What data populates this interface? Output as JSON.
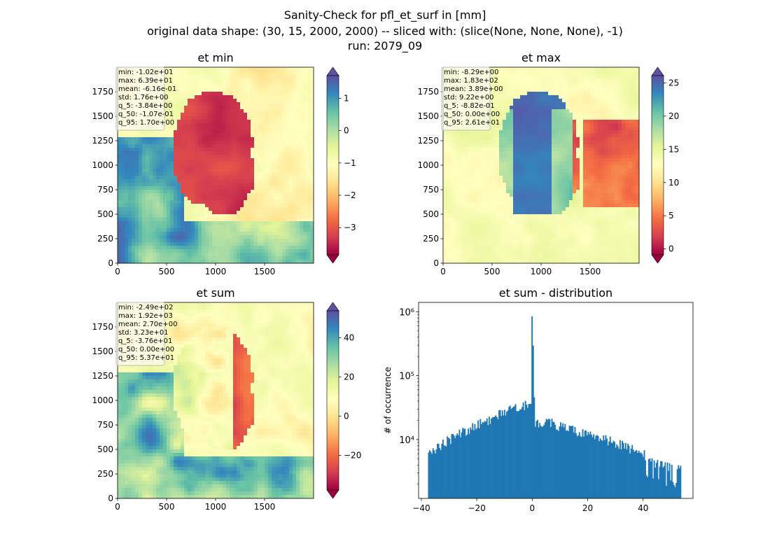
{
  "suptitle": {
    "line1": "Sanity-Check for pfl_et_surf in [mm]",
    "line2": "original data shape: (30, 15, 2000, 2000) -- sliced with: (slice(None, None, None), -1)",
    "line3": "run: 2079_09"
  },
  "colormap": "Spectral",
  "colormap_colors": [
    "#9e0142",
    "#d53e4f",
    "#f46d43",
    "#fdae61",
    "#fee08b",
    "#ffffbf",
    "#e6f598",
    "#abdda4",
    "#66c2a5",
    "#3288bd",
    "#5e4fa2"
  ],
  "bar_color": "#1f77b4",
  "chart_data": [
    {
      "type": "heatmap",
      "title": "et min",
      "xlim": [
        0,
        2000
      ],
      "ylim": [
        0,
        2000
      ],
      "xticks": [
        0,
        500,
        1000,
        1500
      ],
      "yticks": [
        0,
        250,
        500,
        750,
        1000,
        1250,
        1500,
        1750
      ],
      "colorbar": {
        "min": -3.84,
        "max": 1.7,
        "ticks": [
          -3,
          -2,
          -1,
          0,
          1
        ],
        "tick_labels": [
          "−3",
          "−2",
          "−1",
          "0",
          "1"
        ],
        "extend": "both"
      },
      "stats": [
        "min: -1.02e+01",
        "max: 6.39e+01",
        "mean: -6.16e-01",
        "std: 1.76e+00",
        "q_5: -3.84e+00",
        "q_50: -1.07e-01",
        "q_95: 1.70e+00"
      ]
    },
    {
      "type": "heatmap",
      "title": "et max",
      "xlim": [
        0,
        2000
      ],
      "ylim": [
        0,
        2000
      ],
      "xticks": [
        0,
        500,
        1000,
        1500
      ],
      "yticks": [
        0,
        250,
        500,
        750,
        1000,
        1250,
        1500,
        1750
      ],
      "colorbar": {
        "min": -0.882,
        "max": 26.1,
        "ticks": [
          0,
          5,
          10,
          15,
          20,
          25
        ],
        "tick_labels": [
          "0",
          "5",
          "10",
          "15",
          "20",
          "25"
        ],
        "extend": "both"
      },
      "stats": [
        "min: -8.29e+00",
        "max: 1.83e+02",
        "mean: 3.89e+00",
        "std: 9.22e+00",
        "q_5: -8.82e-01",
        "q_50: 0.00e+00",
        "q_95: 2.61e+01"
      ]
    },
    {
      "type": "heatmap",
      "title": "et sum",
      "xlim": [
        0,
        2000
      ],
      "ylim": [
        0,
        2000
      ],
      "xticks": [
        0,
        500,
        1000,
        1500
      ],
      "yticks": [
        0,
        250,
        500,
        750,
        1000,
        1250,
        1500,
        1750
      ],
      "colorbar": {
        "min": -37.6,
        "max": 53.7,
        "ticks": [
          -20,
          0,
          20,
          40
        ],
        "tick_labels": [
          "−20",
          "0",
          "20",
          "40"
        ],
        "extend": "both"
      },
      "stats": [
        "min: -2.49e+02",
        "max: 1.92e+03",
        "mean: 2.70e+00",
        "std: 3.23e+01",
        "q_5: -3.76e+01",
        "q_50: 0.00e+00",
        "q_95: 5.37e+01"
      ]
    },
    {
      "type": "bar",
      "title": "et sum - distribution",
      "ylabel": "# of occurrence",
      "yscale": "log",
      "xlim": [
        -41,
        58
      ],
      "ylim": [
        1200,
        1400000
      ],
      "xticks": [
        -40,
        -20,
        0,
        20,
        40
      ],
      "xtick_labels": [
        "−40",
        "−20",
        "0",
        "20",
        "40"
      ],
      "yticks": [
        10000,
        100000,
        1000000
      ],
      "ytick_labels": [
        "10⁴",
        "10⁵",
        "10⁶"
      ],
      "bin_range": [
        -37.6,
        53.7
      ],
      "shape_points": [
        [
          -37.6,
          6000
        ],
        [
          -30,
          10000
        ],
        [
          -20,
          17000
        ],
        [
          -10,
          27000
        ],
        [
          -5,
          32000
        ],
        [
          -1,
          38000
        ],
        [
          0,
          850000
        ],
        [
          1,
          17000
        ],
        [
          5,
          20000
        ],
        [
          10,
          16000
        ],
        [
          20,
          12000
        ],
        [
          30,
          9000
        ],
        [
          40,
          6000
        ],
        [
          45,
          4200
        ],
        [
          53.7,
          3500
        ]
      ]
    }
  ]
}
